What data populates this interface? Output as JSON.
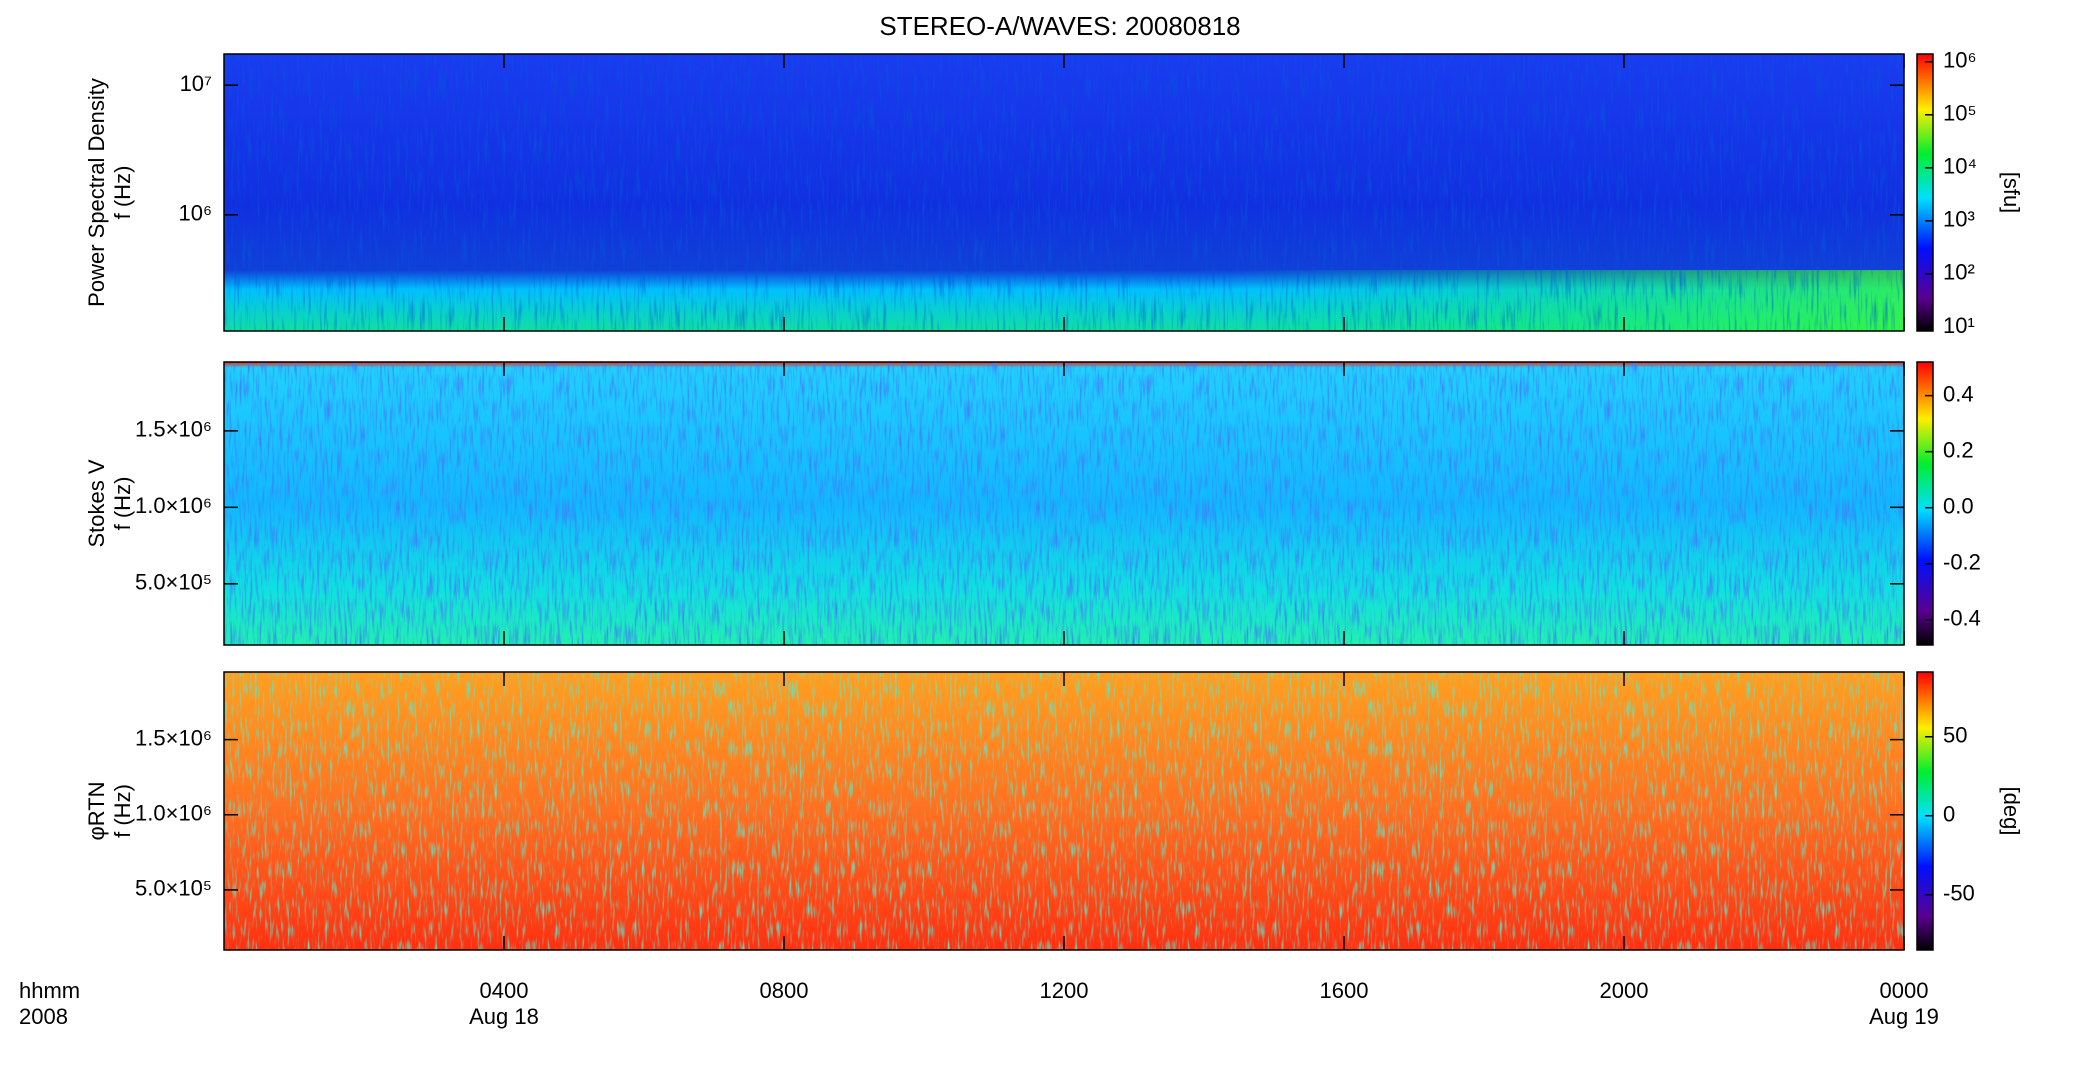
{
  "chart_data": [
    {
      "type": "heatmap",
      "title": "STEREO-A/WAVES: 20080818",
      "ylabel": [
        "Power Spectral Density",
        "f (Hz)"
      ],
      "log_y": true,
      "xlim": [
        0,
        24
      ],
      "ylim": [
        127000,
        17400000
      ],
      "yticks": [
        {
          "value": 1000000,
          "label": "10⁶"
        },
        {
          "value": 10000000,
          "label": "10⁷"
        }
      ],
      "colorbar": {
        "label": "[sfu]",
        "log": true,
        "lim": [
          8.4,
          1400000
        ],
        "ticks": [
          {
            "value": 10,
            "label": "10¹"
          },
          {
            "value": 100,
            "label": "10²"
          },
          {
            "value": 1000,
            "label": "10³"
          },
          {
            "value": 10000,
            "label": "10⁴"
          },
          {
            "value": 100000,
            "label": "10⁵"
          },
          {
            "value": 1000000,
            "label": "10⁶"
          }
        ]
      }
    },
    {
      "type": "heatmap",
      "ylabel": [
        "Stokes V",
        "f (Hz)"
      ],
      "log_y": false,
      "xlim": [
        0,
        24
      ],
      "ylim": [
        100000,
        1950000
      ],
      "yticks": [
        {
          "value": 500000,
          "label": "5.0×10⁵"
        },
        {
          "value": 1000000,
          "label": "1.0×10⁶"
        },
        {
          "value": 1500000,
          "label": "1.5×10⁶"
        }
      ],
      "colorbar": {
        "log": false,
        "lim": [
          -0.49,
          0.52
        ],
        "ticks": [
          {
            "value": -0.4,
            "label": "-0.4"
          },
          {
            "value": -0.2,
            "label": "-0.2"
          },
          {
            "value": 0,
            "label": "0.0"
          },
          0.2,
          0.4
        ]
      }
    },
    {
      "type": "heatmap",
      "ylabel": [
        "φRTN",
        "f (Hz)"
      ],
      "log_y": false,
      "xlim": [
        0,
        24
      ],
      "ylim": [
        100000,
        1950000
      ],
      "yticks": [
        {
          "value": 500000,
          "label": "5.0×10⁵"
        },
        {
          "value": 1000000,
          "label": "1.0×10⁶"
        },
        {
          "value": 1500000,
          "label": "1.5×10⁶"
        }
      ],
      "colorbar": {
        "label": "[deg]",
        "log": false,
        "lim": [
          -85,
          91
        ],
        "ticks": [
          -50,
          0,
          50
        ]
      },
      "x_title": [
        "hhmm",
        "2008"
      ],
      "xticks": [
        {
          "value": 4,
          "label": "0400"
        },
        {
          "value": 8,
          "label": "0800"
        },
        {
          "value": 12,
          "label": "1200"
        },
        {
          "value": 16,
          "label": "1600"
        },
        {
          "value": 20,
          "label": "2000"
        },
        {
          "value": 24,
          "label": "0000"
        }
      ],
      "date_labels": [
        {
          "value": 4,
          "label": "Aug 18"
        },
        {
          "value": 24,
          "label": "Aug 19"
        }
      ]
    }
  ]
}
